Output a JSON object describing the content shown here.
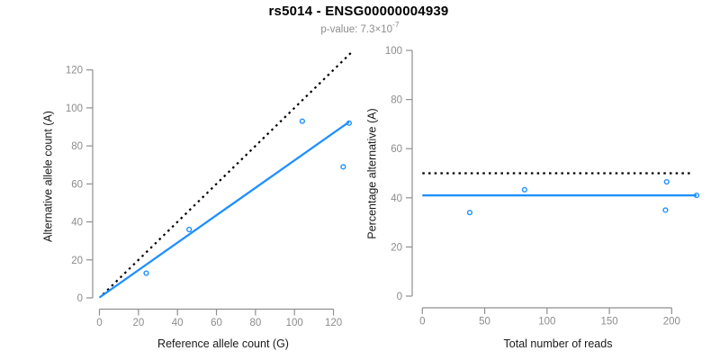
{
  "title": "rs5014 - ENSG00000004939",
  "subtitle": {
    "prefix": "p-value: 7.3×10",
    "exponent": "-7"
  },
  "colors": {
    "background": "#FFFFFF",
    "point_blue": "#1E90FF",
    "fit_blue": "#1E90FF",
    "dotted_black": "#000000",
    "axis_gray": "#8F8F8F",
    "tick_label_gray": "#8C8C8C",
    "axis_title": "#1A1A1A",
    "title_color": "#000000",
    "subtitle_gray": "#8C8C8C"
  },
  "chart_data": [
    {
      "id": "allele-counts",
      "type": "scatter",
      "title": "",
      "xlabel": "Reference allele count (G)",
      "ylabel": "Alternative allele count (A)",
      "xlim": [
        0,
        130
      ],
      "ylim": [
        0,
        130
      ],
      "xticks": [
        0,
        20,
        40,
        60,
        80,
        100,
        120
      ],
      "yticks": [
        0,
        20,
        40,
        60,
        80,
        100,
        120
      ],
      "grid": false,
      "legend": null,
      "points": [
        [
          24,
          13
        ],
        [
          46,
          36
        ],
        [
          104,
          93
        ],
        [
          125,
          69
        ],
        [
          128,
          92
        ]
      ],
      "lines": [
        {
          "name": "identity-line",
          "style": "dotted",
          "color": "#000000",
          "x1": 1.8,
          "y1": 1.8,
          "x2": 129.5,
          "y2": 129.5
        },
        {
          "name": "fit-line",
          "style": "solid",
          "color": "#1E90FF",
          "x1": 0,
          "y1": 0.2,
          "x2": 128,
          "y2": 92.6
        }
      ]
    },
    {
      "id": "percentage-vs-reads",
      "type": "scatter",
      "title": "",
      "xlabel": "Total number of reads",
      "ylabel": "Percentage alternative (A)",
      "xlim": [
        0,
        220
      ],
      "ylim": [
        0,
        100
      ],
      "xticks": [
        0,
        50,
        100,
        150,
        200
      ],
      "yticks": [
        0,
        20,
        40,
        60,
        80,
        100
      ],
      "grid": false,
      "legend": null,
      "points": [
        [
          38,
          34
        ],
        [
          82,
          43.3
        ],
        [
          196,
          46.5
        ],
        [
          195,
          35
        ],
        [
          220,
          41
        ]
      ],
      "lines": [
        {
          "name": "expected-50pct-line",
          "style": "dotted",
          "color": "#000000",
          "x1": 0,
          "y1": 50,
          "x2": 216,
          "y2": 50
        },
        {
          "name": "mean-percentage-line",
          "style": "solid",
          "color": "#1E90FF",
          "x1": 0,
          "y1": 41,
          "x2": 220,
          "y2": 41
        }
      ]
    }
  ]
}
